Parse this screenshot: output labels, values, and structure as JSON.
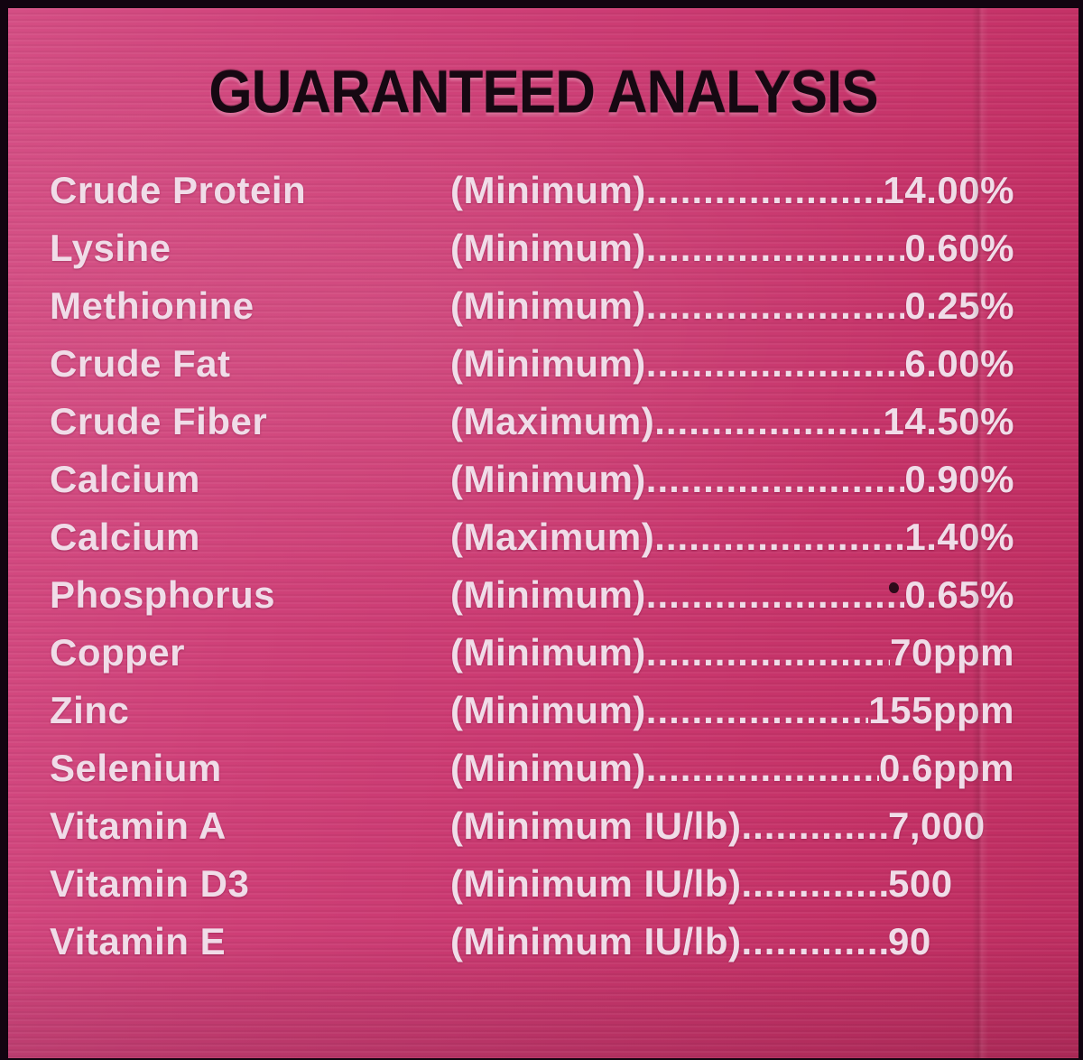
{
  "label": {
    "title": "GUARANTEED ANALYSIS",
    "leader": "........................................................................",
    "colors": {
      "background_pink": "#ca3970",
      "title_black": "#160812",
      "row_text": "#f0dce8",
      "photo_border": "#120410"
    },
    "rows": [
      {
        "nutrient": "Crude Protein",
        "basis": "(Minimum)",
        "value": "14.00%"
      },
      {
        "nutrient": "Lysine",
        "basis": "(Minimum)",
        "value": "0.60%"
      },
      {
        "nutrient": "Methionine",
        "basis": "(Minimum)",
        "value": "0.25%"
      },
      {
        "nutrient": "Crude Fat",
        "basis": "(Minimum)",
        "value": "6.00%"
      },
      {
        "nutrient": "Crude Fiber",
        "basis": "(Maximum)",
        "value": "14.50%"
      },
      {
        "nutrient": "Calcium",
        "basis": "(Minimum)",
        "value": "0.90%"
      },
      {
        "nutrient": "Calcium",
        "basis": "(Maximum)",
        "value": "1.40%"
      },
      {
        "nutrient": "Phosphorus",
        "basis": "(Minimum)",
        "value": "0.65%"
      },
      {
        "nutrient": "Copper",
        "basis": "(Minimum)",
        "value": "70ppm"
      },
      {
        "nutrient": "Zinc",
        "basis": "(Minimum)",
        "value": "155ppm"
      },
      {
        "nutrient": "Selenium",
        "basis": "(Minimum)",
        "value": "0.6ppm"
      },
      {
        "nutrient": "Vitamin A",
        "basis": "(Minimum IU/lb)",
        "value": "7,000"
      },
      {
        "nutrient": "Vitamin D3",
        "basis": "(Minimum IU/lb)",
        "value": "500"
      },
      {
        "nutrient": "Vitamin E",
        "basis": "(Minimum IU/lb)",
        "value": "90"
      }
    ]
  }
}
